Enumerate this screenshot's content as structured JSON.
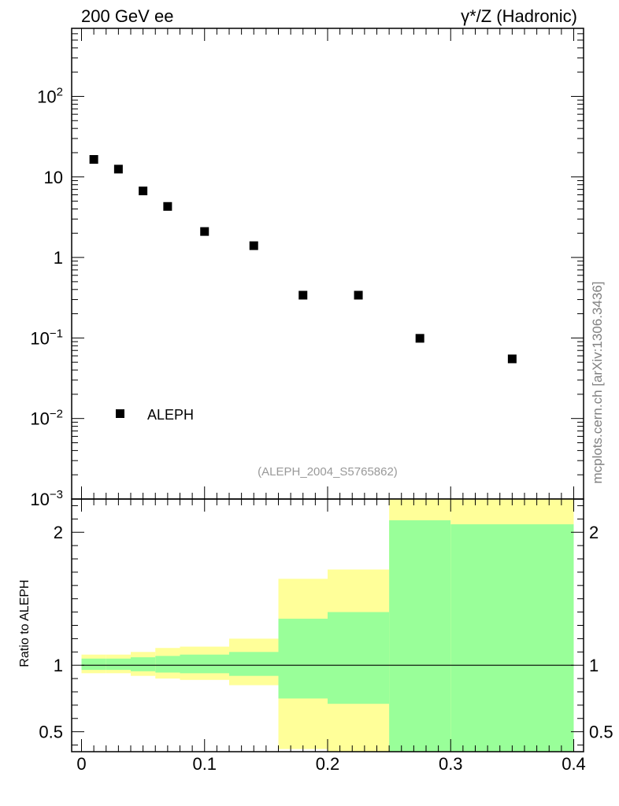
{
  "header": {
    "left_label": "200 GeV ee",
    "right_label": "γ*/Z (Hadronic)"
  },
  "side_label": "mcplots.cern.ch [arXiv:1306.3436]",
  "analysis_label": "(ALEPH_2004_S5765862)",
  "colors": {
    "yellow_band": "#ffff99",
    "green_band": "#99ff99",
    "data_marker": "#000000",
    "analysis_label": "#999999",
    "side_label": "#808080"
  },
  "chart_data": [
    {
      "type": "scatter",
      "scale": "log",
      "ylim": [
        0.001,
        700
      ],
      "xlim": [
        -0.008,
        0.408
      ],
      "y_tick_labels": [
        "10^-3",
        "10^-2",
        "10^-1",
        "1",
        "10",
        "10^2"
      ],
      "legend": {
        "entries": [
          "ALEPH"
        ],
        "position": "bottom-left"
      },
      "series": [
        {
          "name": "ALEPH",
          "x": [
            0.01,
            0.03,
            0.05,
            0.07,
            0.1,
            0.14,
            0.18,
            0.225,
            0.275,
            0.35
          ],
          "values": [
            16.5,
            12.5,
            6.7,
            4.3,
            2.1,
            1.4,
            0.34,
            0.34,
            0.099,
            0.055
          ]
        }
      ]
    },
    {
      "type": "area",
      "ylabel": "Ratio to ALEPH",
      "ylim": [
        0.35,
        2.25
      ],
      "xlim": [
        -0.008,
        0.408
      ],
      "x_tick_labels": [
        "0",
        "0.1",
        "0.2",
        "0.3",
        "0.4"
      ],
      "y_tick_labels": [
        "0.5",
        "1",
        "2"
      ],
      "reference_line": 1,
      "bins": [
        {
          "x0": 0.0,
          "x1": 0.02,
          "yellow": [
            0.94,
            1.08
          ],
          "green": [
            0.965,
            1.05
          ]
        },
        {
          "x0": 0.02,
          "x1": 0.04,
          "yellow": [
            0.94,
            1.08
          ],
          "green": [
            0.965,
            1.05
          ]
        },
        {
          "x0": 0.04,
          "x1": 0.06,
          "yellow": [
            0.92,
            1.1
          ],
          "green": [
            0.955,
            1.06
          ]
        },
        {
          "x0": 0.06,
          "x1": 0.08,
          "yellow": [
            0.9,
            1.13
          ],
          "green": [
            0.945,
            1.07
          ]
        },
        {
          "x0": 0.08,
          "x1": 0.12,
          "yellow": [
            0.89,
            1.14
          ],
          "green": [
            0.94,
            1.08
          ]
        },
        {
          "x0": 0.12,
          "x1": 0.16,
          "yellow": [
            0.85,
            1.2
          ],
          "green": [
            0.92,
            1.1
          ]
        },
        {
          "x0": 0.16,
          "x1": 0.2,
          "yellow": [
            0.37,
            1.65
          ],
          "green": [
            0.75,
            1.35
          ]
        },
        {
          "x0": 0.2,
          "x1": 0.25,
          "yellow": [
            0.35,
            1.72
          ],
          "green": [
            0.71,
            1.4
          ]
        },
        {
          "x0": 0.25,
          "x1": 0.3,
          "yellow": [
            0.35,
            2.25
          ],
          "green": [
            0.35,
            2.09
          ]
        },
        {
          "x0": 0.3,
          "x1": 0.4,
          "yellow": [
            0.35,
            2.25
          ],
          "green": [
            0.35,
            2.06
          ]
        }
      ]
    }
  ]
}
